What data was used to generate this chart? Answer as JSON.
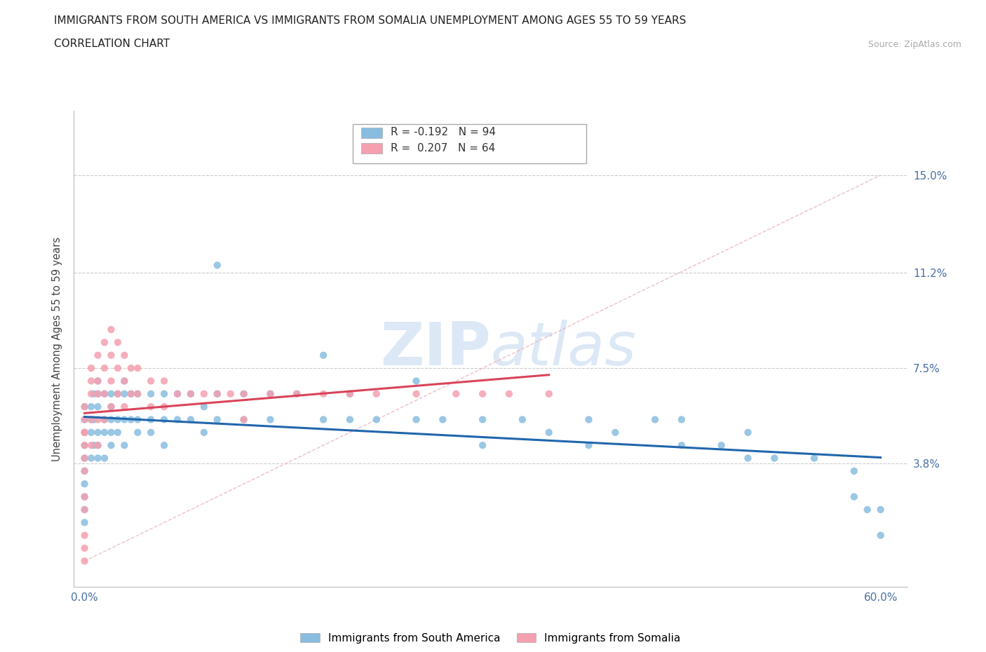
{
  "title_line1": "IMMIGRANTS FROM SOUTH AMERICA VS IMMIGRANTS FROM SOMALIA UNEMPLOYMENT AMONG AGES 55 TO 59 YEARS",
  "title_line2": "CORRELATION CHART",
  "source_text": "Source: ZipAtlas.com",
  "ylabel": "Unemployment Among Ages 55 to 59 years",
  "xlim": [
    0.0,
    0.62
  ],
  "ylim": [
    -0.01,
    0.175
  ],
  "yticks": [
    0.038,
    0.075,
    0.112,
    0.15
  ],
  "ytick_labels": [
    "3.8%",
    "7.5%",
    "11.2%",
    "15.0%"
  ],
  "xtick_labels": [
    "0.0%",
    "",
    "",
    "",
    "",
    "",
    "60.0%"
  ],
  "color_south_america": "#89bde0",
  "color_somalia": "#f4a0b0",
  "color_regression_south": "#2166ac",
  "color_regression_somalia": "#d9445a",
  "watermark_color": "#dce8f5",
  "sa_x": [
    0.0,
    0.0,
    0.0,
    0.0,
    0.0,
    0.0,
    0.0,
    0.0,
    0.0,
    0.0,
    0.005,
    0.005,
    0.005,
    0.005,
    0.007,
    0.007,
    0.007,
    0.01,
    0.01,
    0.01,
    0.01,
    0.01,
    0.01,
    0.015,
    0.015,
    0.015,
    0.015,
    0.02,
    0.02,
    0.02,
    0.02,
    0.02,
    0.025,
    0.025,
    0.025,
    0.03,
    0.03,
    0.03,
    0.03,
    0.035,
    0.035,
    0.04,
    0.04,
    0.04,
    0.05,
    0.05,
    0.05,
    0.06,
    0.06,
    0.06,
    0.07,
    0.07,
    0.08,
    0.08,
    0.09,
    0.09,
    0.1,
    0.1,
    0.1,
    0.12,
    0.12,
    0.14,
    0.14,
    0.16,
    0.18,
    0.18,
    0.2,
    0.2,
    0.22,
    0.25,
    0.25,
    0.27,
    0.3,
    0.3,
    0.33,
    0.35,
    0.38,
    0.38,
    0.4,
    0.43,
    0.45,
    0.45,
    0.48,
    0.5,
    0.5,
    0.52,
    0.55,
    0.58,
    0.58,
    0.59,
    0.6,
    0.6
  ],
  "sa_y": [
    0.06,
    0.05,
    0.055,
    0.04,
    0.045,
    0.035,
    0.03,
    0.025,
    0.02,
    0.015,
    0.06,
    0.055,
    0.05,
    0.04,
    0.065,
    0.055,
    0.045,
    0.07,
    0.065,
    0.06,
    0.05,
    0.045,
    0.04,
    0.065,
    0.055,
    0.05,
    0.04,
    0.065,
    0.06,
    0.055,
    0.05,
    0.045,
    0.065,
    0.055,
    0.05,
    0.07,
    0.065,
    0.055,
    0.045,
    0.065,
    0.055,
    0.065,
    0.055,
    0.05,
    0.065,
    0.055,
    0.05,
    0.065,
    0.055,
    0.045,
    0.065,
    0.055,
    0.065,
    0.055,
    0.06,
    0.05,
    0.115,
    0.065,
    0.055,
    0.065,
    0.055,
    0.065,
    0.055,
    0.065,
    0.08,
    0.055,
    0.065,
    0.055,
    0.055,
    0.07,
    0.055,
    0.055,
    0.055,
    0.045,
    0.055,
    0.05,
    0.055,
    0.045,
    0.05,
    0.055,
    0.055,
    0.045,
    0.045,
    0.05,
    0.04,
    0.04,
    0.04,
    0.035,
    0.025,
    0.02,
    0.02,
    0.01
  ],
  "som_x": [
    0.0,
    0.0,
    0.0,
    0.0,
    0.0,
    0.0,
    0.0,
    0.0,
    0.0,
    0.0,
    0.0,
    0.0,
    0.005,
    0.005,
    0.005,
    0.005,
    0.005,
    0.01,
    0.01,
    0.01,
    0.01,
    0.01,
    0.015,
    0.015,
    0.015,
    0.015,
    0.02,
    0.02,
    0.02,
    0.02,
    0.025,
    0.025,
    0.025,
    0.03,
    0.03,
    0.03,
    0.035,
    0.035,
    0.04,
    0.04,
    0.05,
    0.05,
    0.06,
    0.06,
    0.07,
    0.08,
    0.09,
    0.1,
    0.11,
    0.12,
    0.12,
    0.14,
    0.16,
    0.18,
    0.2,
    0.22,
    0.25,
    0.28,
    0.3,
    0.32,
    0.35
  ],
  "som_y": [
    0.06,
    0.055,
    0.05,
    0.05,
    0.045,
    0.04,
    0.035,
    0.025,
    0.02,
    0.01,
    0.005,
    0.0,
    0.075,
    0.07,
    0.065,
    0.055,
    0.045,
    0.08,
    0.07,
    0.065,
    0.055,
    0.045,
    0.085,
    0.075,
    0.065,
    0.055,
    0.09,
    0.08,
    0.07,
    0.06,
    0.085,
    0.075,
    0.065,
    0.08,
    0.07,
    0.06,
    0.075,
    0.065,
    0.075,
    0.065,
    0.07,
    0.06,
    0.07,
    0.06,
    0.065,
    0.065,
    0.065,
    0.065,
    0.065,
    0.065,
    0.055,
    0.065,
    0.065,
    0.065,
    0.065,
    0.065,
    0.065,
    0.065,
    0.065,
    0.065,
    0.065
  ]
}
